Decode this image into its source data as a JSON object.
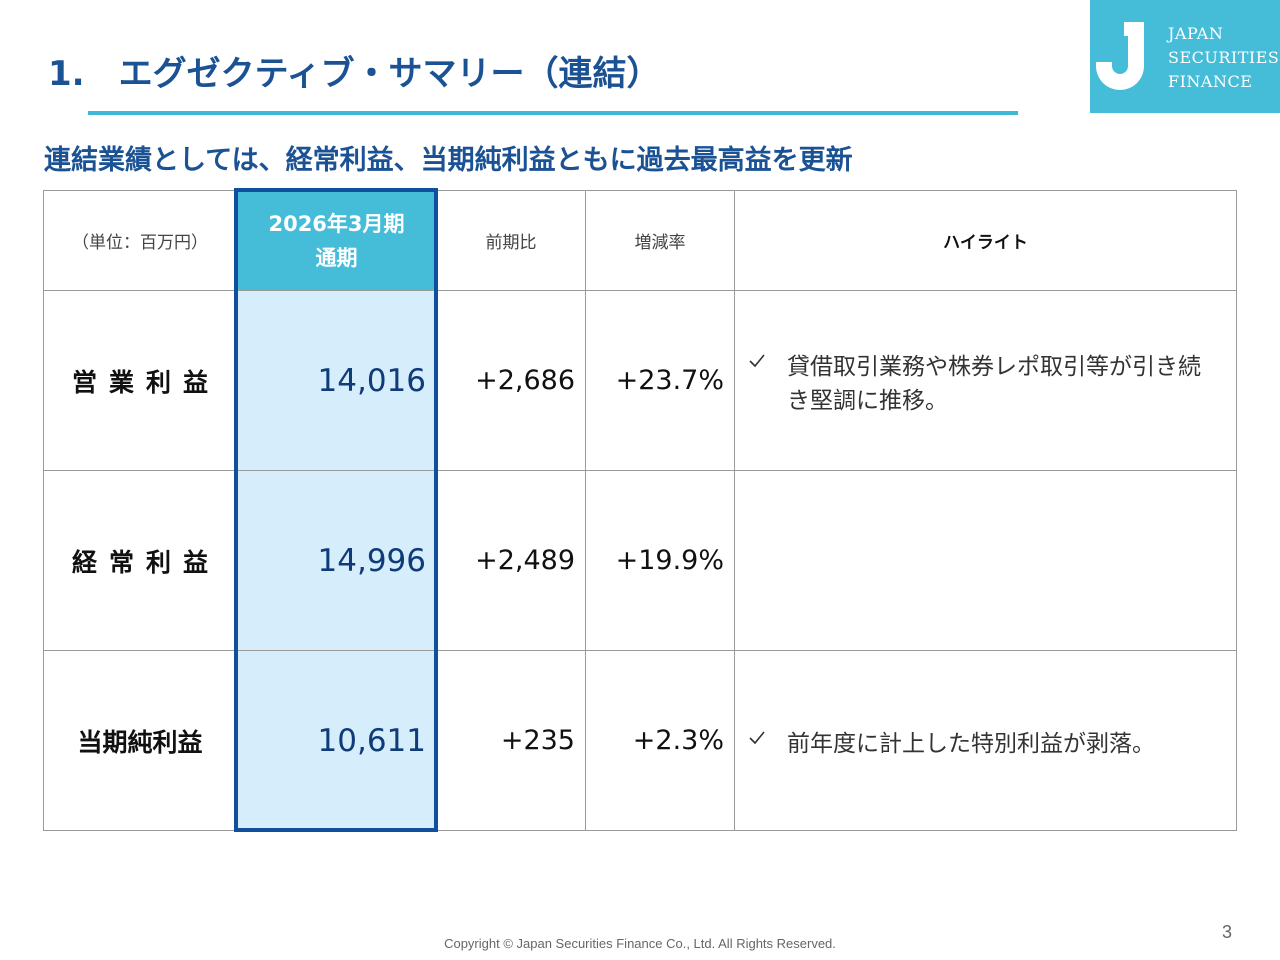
{
  "header": {
    "title": "1.　エグゼクティブ・サマリー（連結）",
    "logo": [
      "JAPAN",
      "SECURITIES",
      "FINANCE"
    ]
  },
  "subtitle": "連結業績としては、経常利益、当期純利益ともに過去最高益を更新",
  "table": {
    "headers": [
      "（単位：百万円）",
      [
        "2026年3月期",
        "通期"
      ],
      "前期比",
      "増減率",
      "ハイライト"
    ],
    "rows": [
      {
        "label": "営業利益",
        "value": "14,016",
        "change": "+2,686",
        "rate": "+23.7%",
        "highlight": "貸借取引業務や株券レポ取引等が引き続き堅調に推移。"
      },
      {
        "label": "経常利益",
        "value": "14,996",
        "change": "+2,489",
        "rate": "+19.9%"
      },
      {
        "label": "当期純利益",
        "value": "10,611",
        "change": "+235",
        "rate": "+2.3%",
        "highlight": "前年度に計上した特別利益が剥落。"
      }
    ]
  },
  "footer": {
    "copyright": "Copyright © Japan Securities Finance Co., Ltd. All Rights Reserved.",
    "page": "3"
  }
}
